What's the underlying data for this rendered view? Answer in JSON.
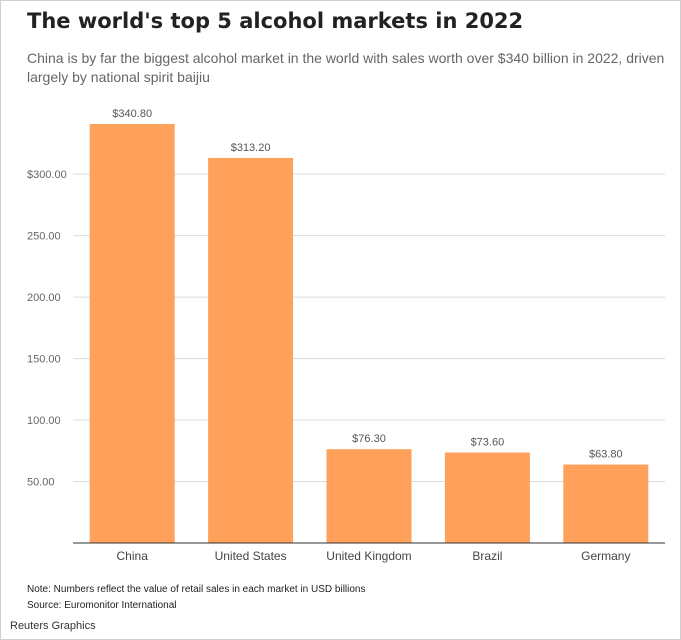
{
  "header": {
    "title": "The world's top 5 alcohol markets in 2022",
    "subtitle": "China is by far the biggest alcohol market in the world with sales worth over $340 billion in 2022, driven largely by national spirit baijiu"
  },
  "chart_data": {
    "type": "bar",
    "categories": [
      "China",
      "United States",
      "United Kingdom",
      "Brazil",
      "Germany"
    ],
    "values": [
      340.8,
      313.2,
      76.3,
      73.6,
      63.8
    ],
    "value_labels": [
      "$340.80",
      "$313.20",
      "$76.30",
      "$73.60",
      "$63.80"
    ],
    "y_ticks": [
      50,
      100,
      150,
      200,
      250,
      300
    ],
    "y_tick_labels": [
      "50.00",
      "100.00",
      "150.00",
      "200.00",
      "250.00",
      "$300.00"
    ],
    "ylim": [
      0,
      340.8
    ],
    "grid": true,
    "bar_color": "#FFA15A"
  },
  "footer": {
    "note": "Note: Numbers reflect the value of retail sales in each market in USD billions",
    "source": "Source: Euromonitor International",
    "credit": "Reuters Graphics"
  }
}
